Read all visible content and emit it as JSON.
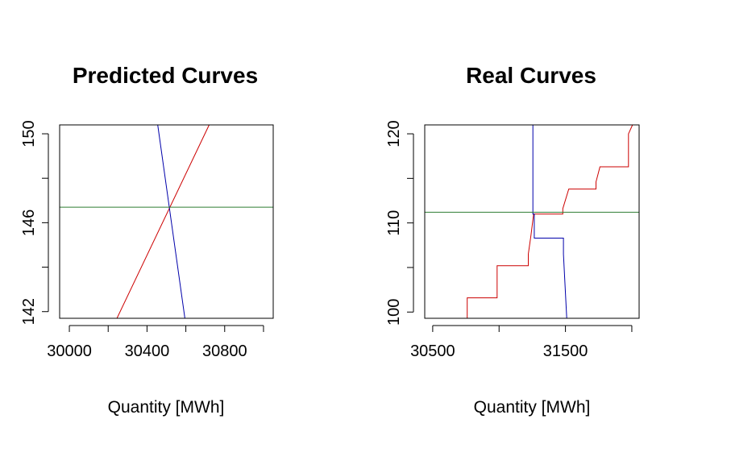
{
  "chart_data": [
    {
      "type": "line",
      "title": "Predicted Curves",
      "xlabel": "Quantity [MWh]",
      "ylabel": "",
      "xlim": [
        29950,
        31050
      ],
      "ylim": [
        141.7,
        150.4
      ],
      "xticks": [
        30000,
        30200,
        30400,
        30600,
        30800,
        31000
      ],
      "xtick_labels": [
        "30000",
        "",
        "30400",
        "",
        "30800",
        ""
      ],
      "yticks": [
        142,
        144,
        146,
        148,
        150
      ],
      "ytick_labels": [
        "142",
        "",
        "146",
        "",
        "150"
      ],
      "grid": false,
      "legend": "none",
      "series": [
        {
          "color": "#cc0000",
          "kind": "line",
          "x": [
            30245,
            30720
          ],
          "y": [
            141.7,
            150.4
          ]
        },
        {
          "color": "#0000aa",
          "kind": "line",
          "x": [
            30455,
            30595
          ],
          "y": [
            150.4,
            141.7
          ]
        },
        {
          "color": "#2e7d32",
          "kind": "hline",
          "y": 146.7
        }
      ]
    },
    {
      "type": "line",
      "title": "Real Curves",
      "xlabel": "Quantity [MWh]",
      "ylabel": "",
      "xlim": [
        30440,
        32055
      ],
      "ylim": [
        99.3,
        121.0
      ],
      "xticks": [
        30500,
        31000,
        31500,
        32000
      ],
      "xtick_labels": [
        "30500",
        "",
        "31500",
        ""
      ],
      "yticks": [
        100,
        105,
        110,
        115,
        120
      ],
      "ytick_labels": [
        "100",
        "",
        "110",
        "",
        "120"
      ],
      "grid": false,
      "legend": "none",
      "series": [
        {
          "color": "#cc0000",
          "kind": "steps",
          "x": [
            30760,
            30760,
            30985,
            30985,
            31220,
            31220,
            31240,
            31260,
            31260,
            31480,
            31480,
            31525,
            31525,
            31730,
            31730,
            31760,
            31760,
            31975,
            31975,
            32005
          ],
          "y": [
            99.3,
            101.6,
            101.6,
            105.2,
            105.2,
            106.5,
            108.6,
            111.0,
            111.0,
            111.0,
            111.6,
            113.8,
            113.8,
            113.8,
            114.6,
            116.3,
            116.3,
            116.3,
            120.0,
            121.0
          ]
        },
        {
          "color": "#0000aa",
          "kind": "steps",
          "x": [
            31255,
            31255,
            31265,
            31265,
            31485,
            31485,
            31510
          ],
          "y": [
            121.0,
            111.0,
            111.0,
            108.3,
            108.3,
            106.5,
            99.3
          ]
        },
        {
          "color": "#2e7d32",
          "kind": "hline",
          "y": 111.2
        }
      ]
    }
  ]
}
